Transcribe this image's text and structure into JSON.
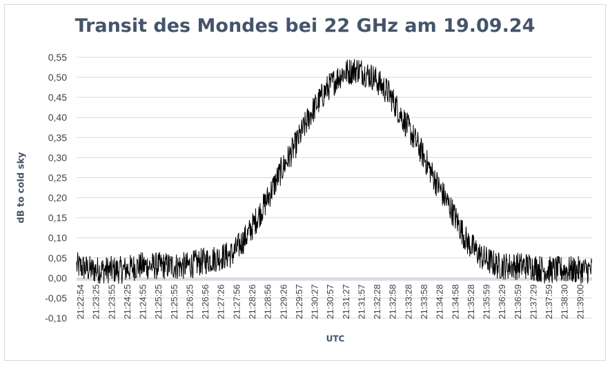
{
  "chart_data": {
    "type": "line",
    "title": "Transit des Mondes bei 22 GHz am 19.09.24",
    "xlabel": "UTC",
    "ylabel": "dB to cold sky",
    "ylim": [
      -0.1,
      0.55
    ],
    "yticks": [
      "0,55",
      "0,50",
      "0,45",
      "0,40",
      "0,35",
      "0,30",
      "0,25",
      "0,20",
      "0,15",
      "0,10",
      "0,05",
      "0,00",
      "-0,05",
      "-0,10"
    ],
    "xticks": [
      "21:22:54",
      "21:23:25",
      "21:23:55",
      "21:24:25",
      "21:24:55",
      "21:25:25",
      "21:25:55",
      "21:26:25",
      "21:26:56",
      "21:27:26",
      "21:27:56",
      "21:28:26",
      "21:28:56",
      "21:29:26",
      "21:29:57",
      "21:30:27",
      "21:30:57",
      "21:31:27",
      "21:31:57",
      "21:32:28",
      "21:32:58",
      "21:33:28",
      "21:33:58",
      "21:34:28",
      "21:34:58",
      "21:35:28",
      "21:35:59",
      "21:36:29",
      "21:36:59",
      "21:37:29",
      "21:37:59",
      "21:38:30",
      "21:39:00"
    ],
    "grid": true,
    "series": [
      {
        "x": [
          "21:22:54",
          "21:23:25",
          "21:23:55",
          "21:24:25",
          "21:24:55",
          "21:25:25",
          "21:25:55",
          "21:26:25",
          "21:26:56",
          "21:27:26",
          "21:27:56",
          "21:28:26",
          "21:28:56",
          "21:29:26",
          "21:29:57",
          "21:30:27",
          "21:30:57",
          "21:31:27",
          "21:31:57",
          "21:32:28",
          "21:32:58",
          "21:33:28",
          "21:33:58",
          "21:34:28",
          "21:34:58",
          "21:35:28",
          "21:35:59",
          "21:36:29",
          "21:36:59",
          "21:37:29",
          "21:37:59",
          "21:38:30",
          "21:39:00",
          "21:39:30"
        ],
        "y": [
          0.03,
          0.02,
          0.02,
          0.02,
          0.03,
          0.03,
          0.03,
          0.03,
          0.04,
          0.05,
          0.06,
          0.11,
          0.18,
          0.26,
          0.33,
          0.41,
          0.47,
          0.51,
          0.52,
          0.5,
          0.46,
          0.39,
          0.32,
          0.24,
          0.17,
          0.09,
          0.05,
          0.03,
          0.03,
          0.03,
          0.02,
          0.02,
          0.02,
          0.02
        ],
        "noise": 0.035,
        "color": "#000000"
      }
    ]
  }
}
